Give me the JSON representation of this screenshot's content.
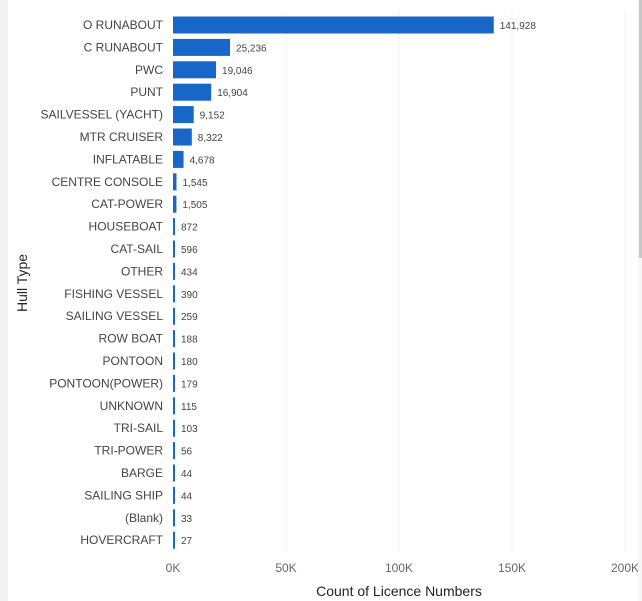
{
  "chart_data": {
    "type": "bar",
    "orientation": "horizontal",
    "xlabel": "Count of Licence Numbers",
    "ylabel": "Hull Type",
    "xlim": [
      0,
      200000
    ],
    "x_ticks": [
      "0K",
      "50K",
      "100K",
      "150K",
      "200K"
    ],
    "grid": "vertical-dotted",
    "bar_color": "#1867C8",
    "categories": [
      "O RUNABOUT",
      "C RUNABOUT",
      "PWC",
      "PUNT",
      "SAILVESSEL (YACHT)",
      "MTR CRUISER",
      "INFLATABLE",
      "CENTRE CONSOLE",
      "CAT-POWER",
      "HOUSEBOAT",
      "CAT-SAIL",
      "OTHER",
      "FISHING VESSEL",
      "SAILING VESSEL",
      "ROW BOAT",
      "PONTOON",
      "PONTOON(POWER)",
      "UNKNOWN",
      "TRI-SAIL",
      "TRI-POWER",
      "BARGE",
      "SAILING SHIP",
      "(Blank)",
      "HOVERCRAFT"
    ],
    "values": [
      141928,
      25236,
      19046,
      16904,
      9152,
      8322,
      4678,
      1545,
      1505,
      872,
      596,
      434,
      390,
      259,
      188,
      180,
      179,
      115,
      103,
      56,
      44,
      44,
      33,
      27
    ],
    "value_labels": [
      "141,928",
      "25,236",
      "19,046",
      "16,904",
      "9,152",
      "8,322",
      "4,678",
      "1,545",
      "1,505",
      "872",
      "596",
      "434",
      "390",
      "259",
      "188",
      "180",
      "179",
      "115",
      "103",
      "56",
      "44",
      "44",
      "33",
      "27"
    ]
  }
}
